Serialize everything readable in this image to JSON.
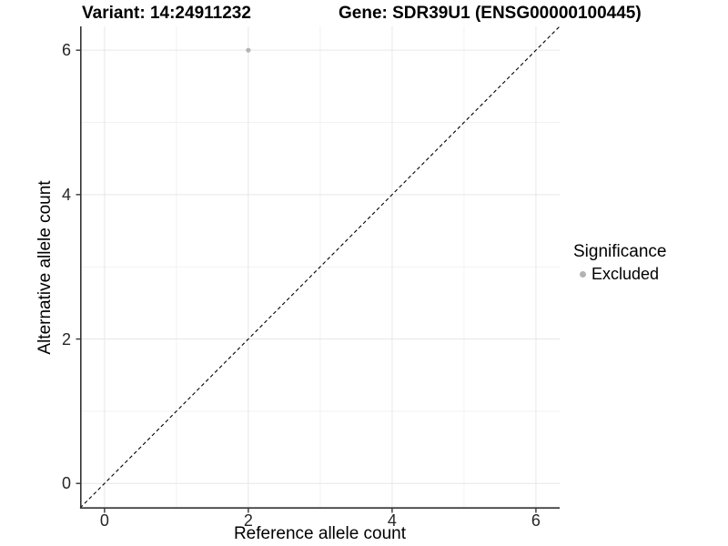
{
  "chart_data": {
    "type": "scatter",
    "title_left": "Variant: 14:24911232",
    "title_right": "Gene: SDR39U1 (ENSG00000100445)",
    "xlabel": "Reference allele count",
    "ylabel": "Alternative allele count",
    "xlim": [
      -0.34,
      6.33
    ],
    "ylim": [
      -0.35,
      6.33
    ],
    "xticks": [
      0,
      2,
      4,
      6
    ],
    "yticks": [
      0,
      2,
      4,
      6
    ],
    "x_minor_ticks": [
      1,
      3,
      5
    ],
    "y_minor_ticks": [
      1,
      3,
      5
    ],
    "grid": "major and minor gridlines, white panel background",
    "points": [
      {
        "x": 2,
        "y": 6,
        "series": "Excluded",
        "color": "#b3b3b3",
        "radius": 2.6
      }
    ],
    "reference_line": {
      "type": "identity y=x",
      "style": "dashed",
      "color": "#000000"
    },
    "legend": {
      "title": "Significance",
      "position": "right",
      "entries": [
        {
          "label": "Excluded",
          "color": "#b3b3b3"
        }
      ]
    }
  },
  "colors": {
    "background": "#ffffff",
    "grid_major": "#e7e7e7",
    "grid_minor": "#f2f2f2",
    "axis_line": "#333333",
    "tick_label": "#262626",
    "excluded_point": "#b3b3b3"
  }
}
